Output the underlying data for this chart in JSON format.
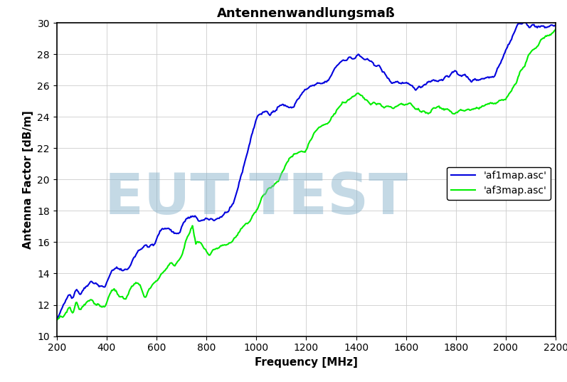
{
  "title": "Antennenwandlungsmaß",
  "xlabel": "Frequency [MHz]",
  "ylabel": "Antenna Factor [dB/m]",
  "xlim": [
    200,
    2200
  ],
  "ylim": [
    10,
    30
  ],
  "xticks": [
    200,
    400,
    600,
    800,
    1000,
    1200,
    1400,
    1600,
    1800,
    2000,
    2200
  ],
  "yticks": [
    10,
    12,
    14,
    16,
    18,
    20,
    22,
    24,
    26,
    28,
    30
  ],
  "line1_color": "#0000dd",
  "line2_color": "#00ee00",
  "line1_label": "'af1map.asc'",
  "line2_label": "'af3map.asc'",
  "watermark_text": "EUT TEST",
  "watermark_color": "#8ab4cc",
  "watermark_alpha": 0.5,
  "background_color": "#ffffff",
  "grid_color": "#cccccc",
  "title_fontsize": 13,
  "axis_label_fontsize": 11,
  "tick_fontsize": 10,
  "legend_fontsize": 10,
  "figsize": [
    7.97,
    5.37
  ],
  "dpi": 100
}
